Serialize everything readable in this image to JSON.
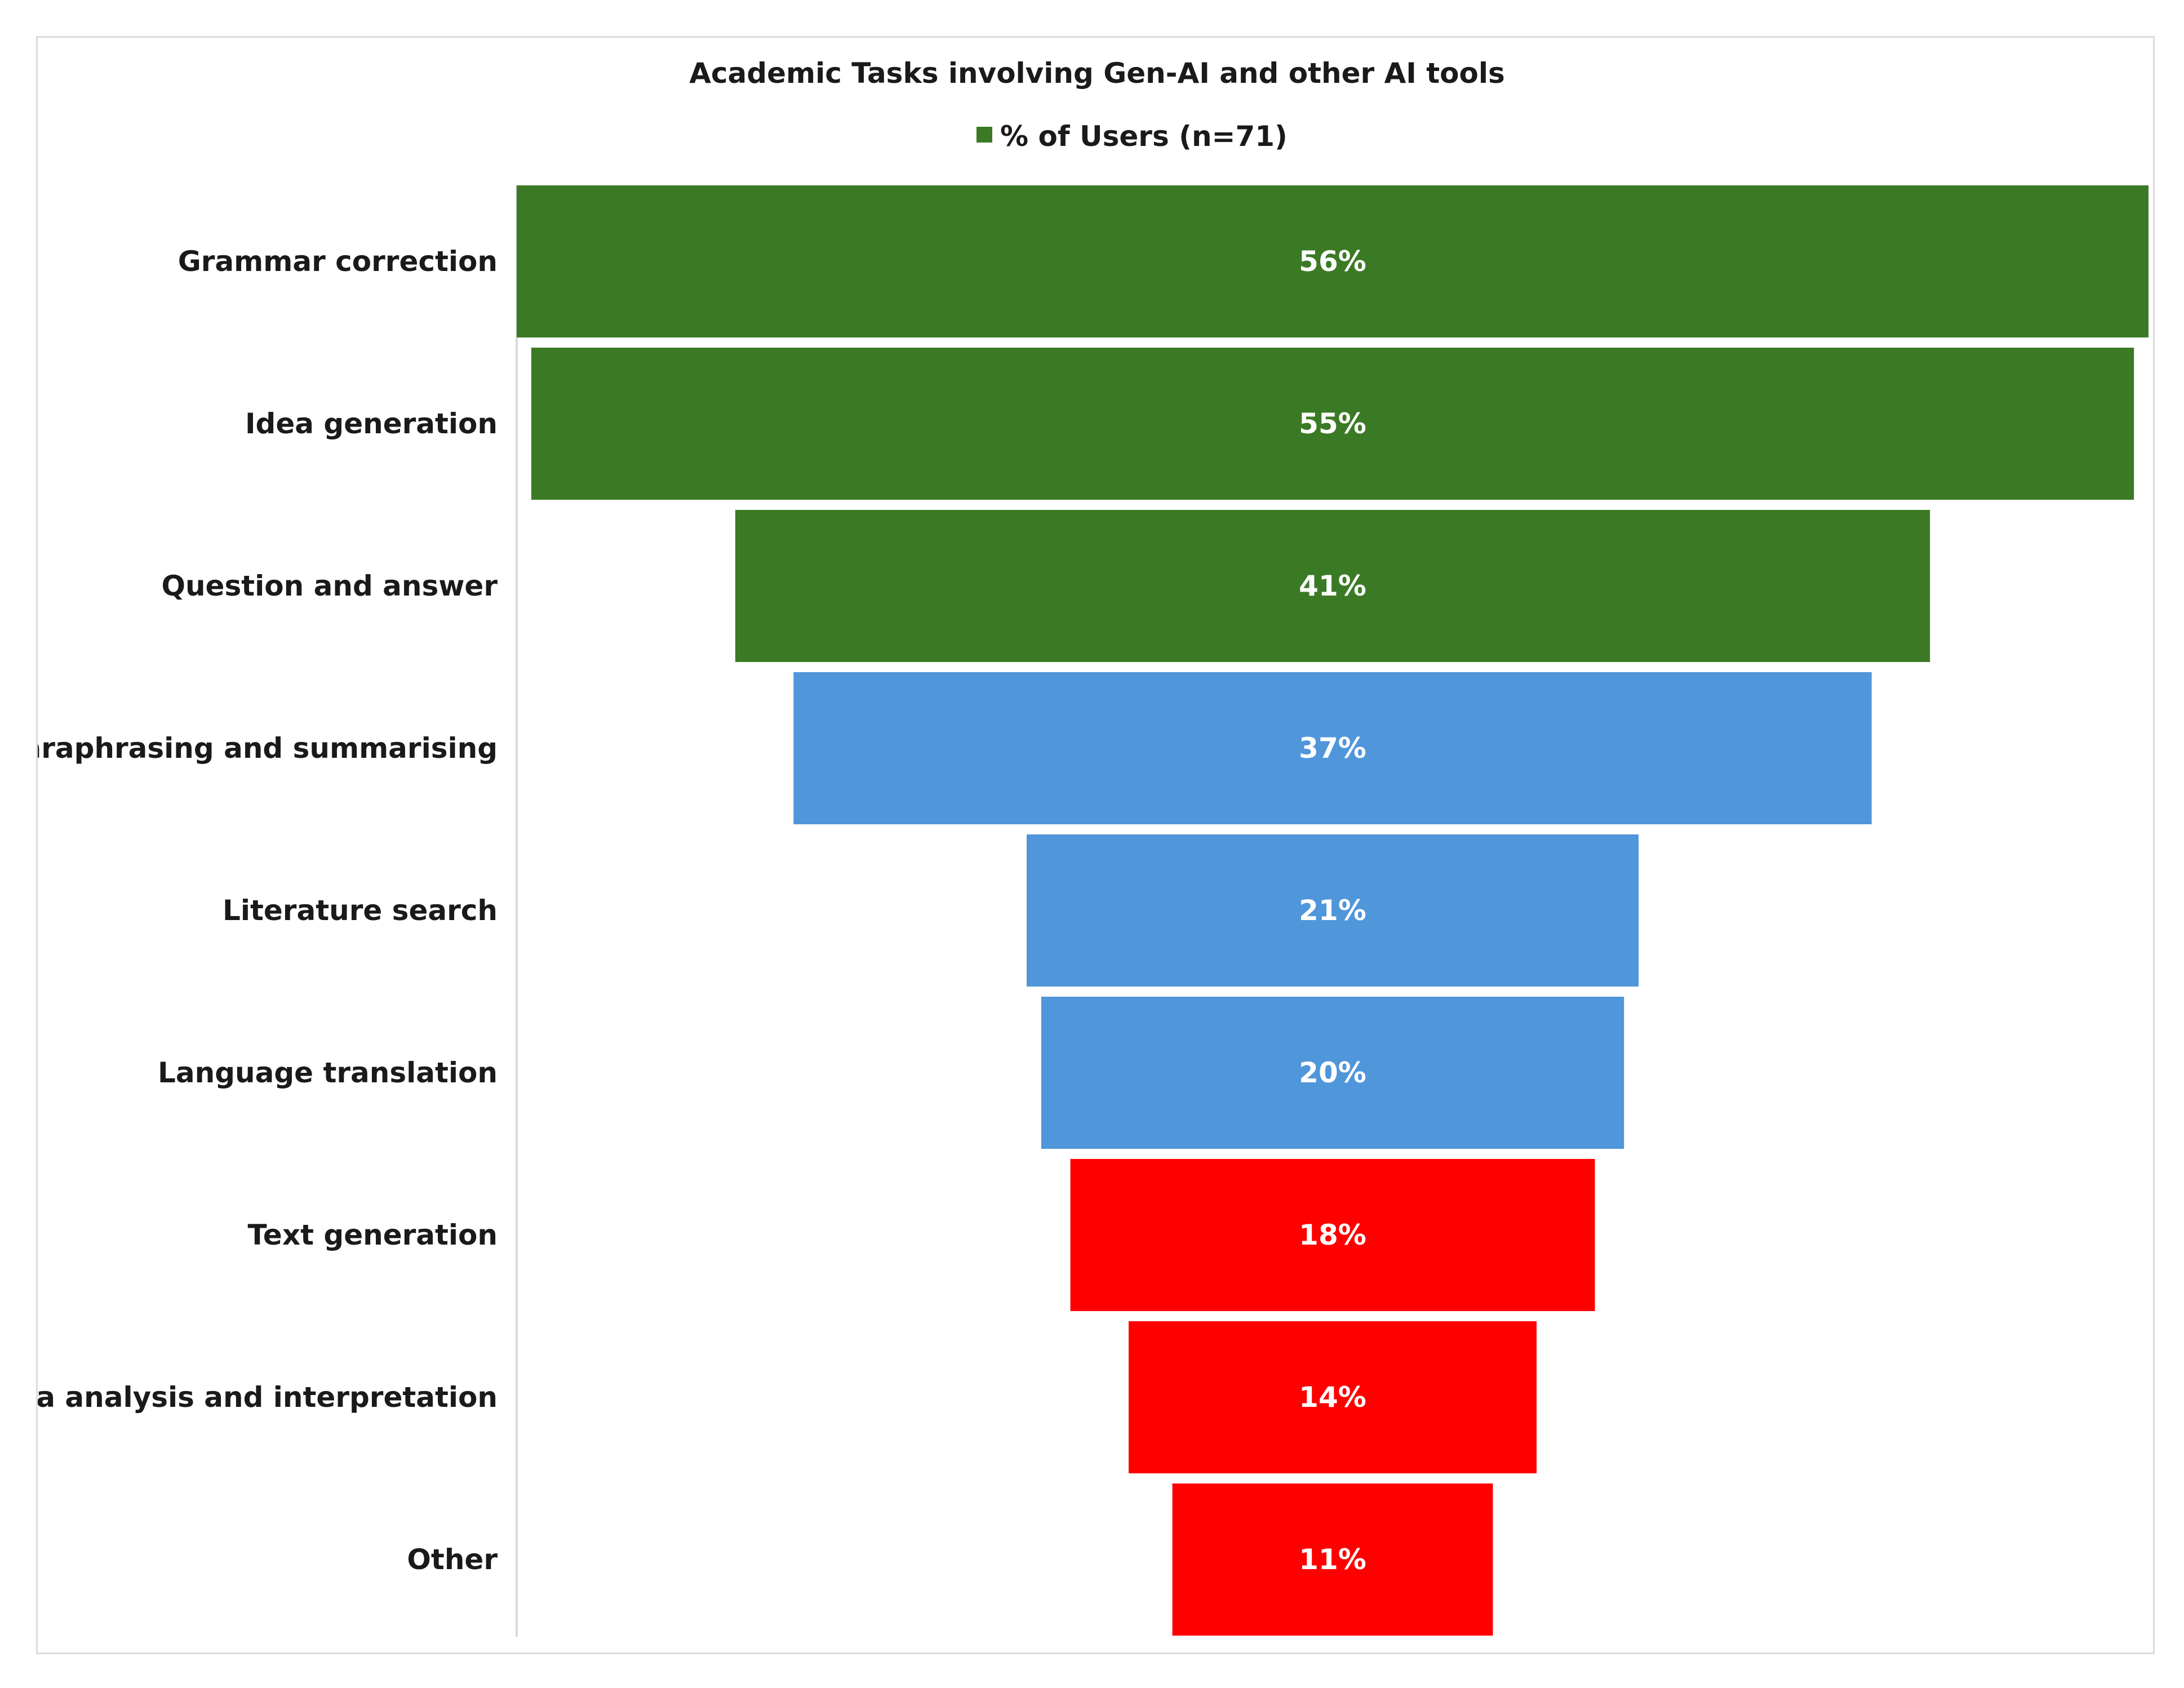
{
  "chart_data": {
    "type": "bar",
    "orientation": "horizontal",
    "layout": "funnel",
    "title": "Academic Tasks involving Gen-AI and other AI tools",
    "legend": {
      "position": "top",
      "entries": [
        {
          "label": "% of Users (n=71)",
          "color": "#3b7a24"
        }
      ]
    },
    "grid": false,
    "categories": [
      "Grammar correction",
      "Idea generation",
      "Question and answer",
      "Paraphrasing and summarising",
      "Literature search",
      "Language translation",
      "Text generation",
      "Data analysis and interpretation",
      "Other"
    ],
    "series": [
      {
        "name": "% of Users (n=71)",
        "values": [
          56,
          55,
          41,
          37,
          21,
          20,
          18,
          14,
          11
        ],
        "data_labels": [
          "56%",
          "55%",
          "41%",
          "37%",
          "21%",
          "20%",
          "18%",
          "14%",
          "11%"
        ],
        "colors": [
          "#3b7a24",
          "#3b7a24",
          "#3b7a24",
          "#5096da",
          "#5096da",
          "#5096da",
          "#ff0000",
          "#ff0000",
          "#ff0000"
        ]
      }
    ],
    "xlim": [
      0,
      56
    ]
  }
}
